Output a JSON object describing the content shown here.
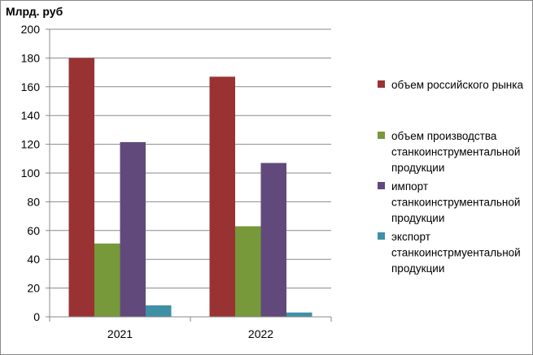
{
  "chart_data": {
    "type": "bar",
    "unit_label": "Млрд. руб",
    "categories": [
      "2021",
      "2022"
    ],
    "ylim": [
      0,
      200
    ],
    "yticks": [
      0,
      20,
      40,
      60,
      80,
      100,
      120,
      140,
      160,
      180,
      200
    ],
    "grid": true,
    "legend_position": "right",
    "series": [
      {
        "name": [
          "объем российского рынка"
        ],
        "color": "#993333",
        "values": [
          180,
          167
        ]
      },
      {
        "name": [
          "объем производства",
          "станкоинструментальной",
          "продукции"
        ],
        "color": "#77993a",
        "values": [
          51,
          63
        ]
      },
      {
        "name": [
          "импорт",
          "станкоинструментальной",
          "продукции"
        ],
        "color": "#614a7b",
        "values": [
          121.5,
          107
        ]
      },
      {
        "name": [
          "экспорт",
          "станкоинстрмуентальной",
          "продукции"
        ],
        "color": "#3f8fa5",
        "values": [
          8,
          3
        ]
      }
    ]
  }
}
